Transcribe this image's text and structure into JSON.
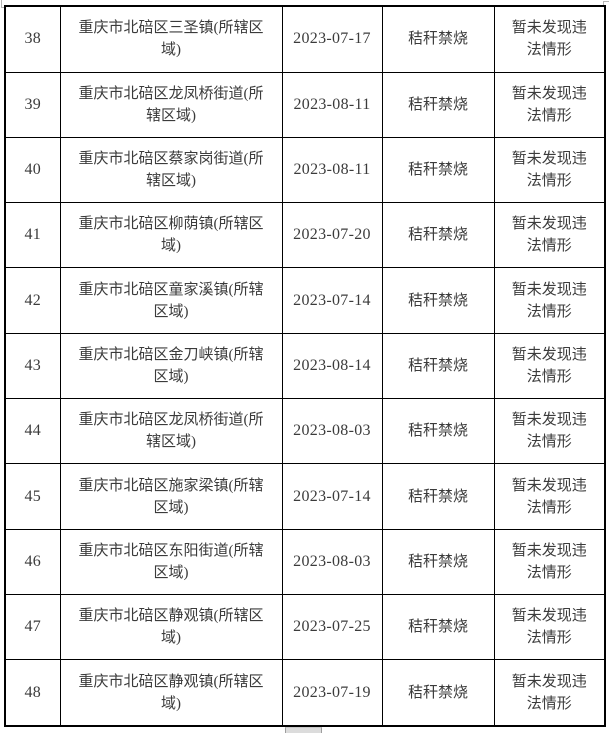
{
  "colors": {
    "table_border": "#000000",
    "text": "#3b3b3b",
    "background": "#ffffff",
    "fragment_gray": "#b5b5b5",
    "bottom_fragment_fill": "#dcdcdc"
  },
  "table": {
    "rows": [
      {
        "no": "38",
        "area": "重庆市北碚区三圣镇(所辖区域)",
        "date": "2023-07-17",
        "type": "秸秆禁烧",
        "result": "暂未发现违法情形"
      },
      {
        "no": "39",
        "area": "重庆市北碚区龙凤桥街道(所辖区域)",
        "date": "2023-08-11",
        "type": "秸秆禁烧",
        "result": "暂未发现违法情形"
      },
      {
        "no": "40",
        "area": "重庆市北碚区蔡家岗街道(所辖区域)",
        "date": "2023-08-11",
        "type": "秸秆禁烧",
        "result": "暂未发现违法情形"
      },
      {
        "no": "41",
        "area": "重庆市北碚区柳荫镇(所辖区域)",
        "date": "2023-07-20",
        "type": "秸秆禁烧",
        "result": "暂未发现违法情形"
      },
      {
        "no": "42",
        "area": "重庆市北碚区童家溪镇(所辖区域)",
        "date": "2023-07-14",
        "type": "秸秆禁烧",
        "result": "暂未发现违法情形"
      },
      {
        "no": "43",
        "area": "重庆市北碚区金刀峡镇(所辖区域)",
        "date": "2023-08-14",
        "type": "秸秆禁烧",
        "result": "暂未发现违法情形"
      },
      {
        "no": "44",
        "area": "重庆市北碚区龙凤桥街道(所辖区域)",
        "date": "2023-08-03",
        "type": "秸秆禁烧",
        "result": "暂未发现违法情形"
      },
      {
        "no": "45",
        "area": "重庆市北碚区施家梁镇(所辖区域)",
        "date": "2023-07-14",
        "type": "秸秆禁烧",
        "result": "暂未发现违法情形"
      },
      {
        "no": "46",
        "area": "重庆市北碚区东阳街道(所辖区域)",
        "date": "2023-08-03",
        "type": "秸秆禁烧",
        "result": "暂未发现违法情形"
      },
      {
        "no": "47",
        "area": "重庆市北碚区静观镇(所辖区域)",
        "date": "2023-07-25",
        "type": "秸秆禁烧",
        "result": "暂未发现违法情形"
      },
      {
        "no": "48",
        "area": "重庆市北碚区静观镇(所辖区域)",
        "date": "2023-07-19",
        "type": "秸秆禁烧",
        "result": "暂未发现违法情形"
      }
    ]
  }
}
